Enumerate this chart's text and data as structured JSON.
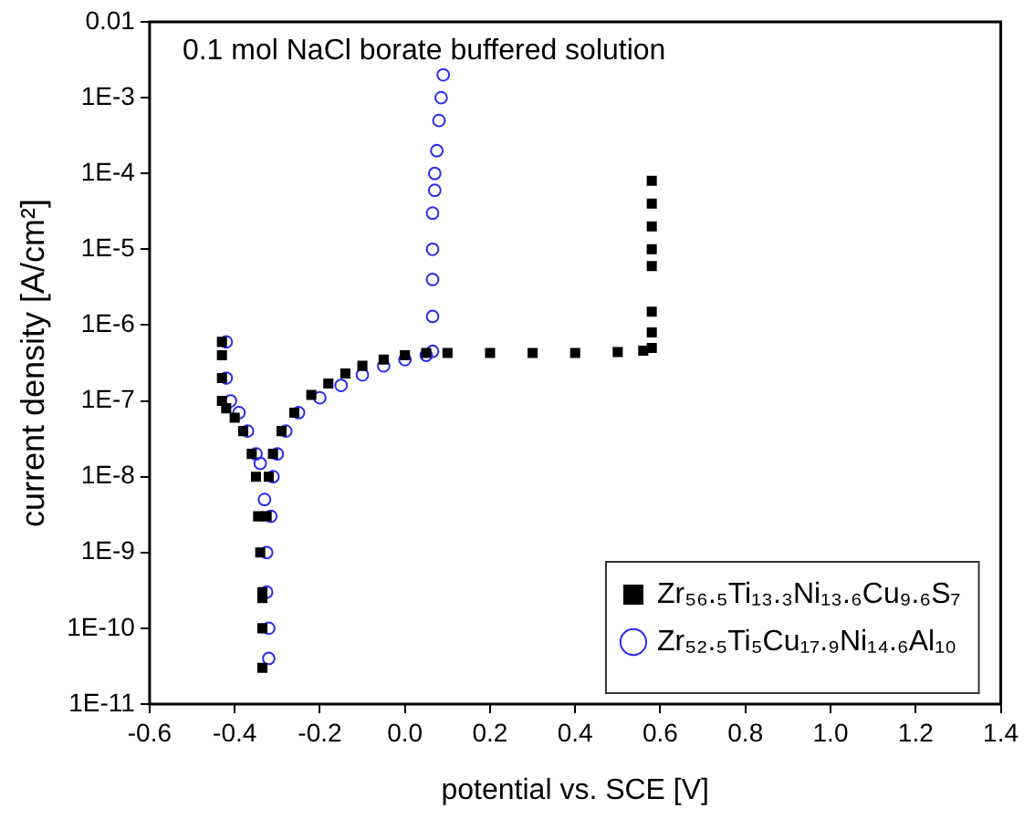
{
  "chart_data": {
    "type": "scatter",
    "xlabel": "potential vs. SCE [V]",
    "ylabel": "current density [A/cm²]",
    "log": "y",
    "annotations": [
      "0.1 mol NaCl borate buffered solution"
    ],
    "xlim": [
      -0.6,
      1.4
    ],
    "ylim": [
      1e-11,
      0.01
    ],
    "xticks": [
      {
        "value": -0.6,
        "label": "-0.6"
      },
      {
        "value": -0.4,
        "label": "-0.4"
      },
      {
        "value": -0.2,
        "label": "-0.2"
      },
      {
        "value": 0,
        "label": "0.0"
      },
      {
        "value": 0.2,
        "label": "0.2"
      },
      {
        "value": 0.4,
        "label": "0.4"
      },
      {
        "value": 0.6,
        "label": "0.6"
      },
      {
        "value": 0.8,
        "label": "0.8"
      },
      {
        "value": 1,
        "label": "1.0"
      },
      {
        "value": 1.2,
        "label": "1.2"
      },
      {
        "value": 1.4,
        "label": "1.4"
      }
    ],
    "yticks": [
      {
        "value": 1e-11,
        "label": "1E-11"
      },
      {
        "value": 1e-10,
        "label": "1E-10"
      },
      {
        "value": 1e-09,
        "label": "1E-9"
      },
      {
        "value": 1e-08,
        "label": "1E-8"
      },
      {
        "value": 1e-07,
        "label": "1E-7"
      },
      {
        "value": 1e-06,
        "label": "1E-6"
      },
      {
        "value": 1e-05,
        "label": "1E-5"
      },
      {
        "value": 0.0001,
        "label": "1E-4"
      },
      {
        "value": 0.001,
        "label": "1E-3"
      },
      {
        "value": 0.01,
        "label": "0.01"
      }
    ],
    "legend": "bottom right",
    "series": [
      {
        "name": "Zr₅₆.₅Ti₁₃.₃Ni₁₃.₆Cu₉.₆S₇",
        "color": "#000000",
        "marker": "square",
        "x": [
          -0.43,
          -0.43,
          -0.43,
          -0.43,
          -0.42,
          -0.4,
          -0.38,
          -0.36,
          -0.35,
          -0.345,
          -0.34,
          -0.335,
          -0.335,
          -0.335,
          -0.335,
          -0.325,
          -0.32,
          -0.31,
          -0.29,
          -0.26,
          -0.22,
          -0.18,
          -0.14,
          -0.1,
          -0.05,
          0,
          0.05,
          0.1,
          0.2,
          0.3,
          0.4,
          0.5,
          0.56,
          0.58,
          0.58,
          0.58,
          0.58,
          0.58,
          0.58,
          0.58,
          0.58
        ],
        "values": [
          6e-07,
          4e-07,
          2e-07,
          1e-07,
          8e-08,
          6e-08,
          4e-08,
          2e-08,
          1e-08,
          3e-09,
          1e-09,
          3e-10,
          2.5e-10,
          1e-10,
          3e-11,
          3e-09,
          1e-08,
          2e-08,
          4e-08,
          7e-08,
          1.2e-07,
          1.7e-07,
          2.3e-07,
          2.9e-07,
          3.5e-07,
          4e-07,
          4.3e-07,
          4.3e-07,
          4.3e-07,
          4.3e-07,
          4.3e-07,
          4.4e-07,
          4.6e-07,
          5e-07,
          8e-07,
          1.5e-06,
          6e-06,
          1e-05,
          2e-05,
          4e-05,
          8e-05
        ]
      },
      {
        "name": "Zr₅₂.₅Ti₅Cu₁₇.₉Ni₁₄.₆Al₁₀",
        "color": "#2b2bf0",
        "marker": "circle",
        "x": [
          -0.42,
          -0.42,
          -0.41,
          -0.39,
          -0.37,
          -0.35,
          -0.34,
          -0.33,
          -0.325,
          -0.325,
          -0.32,
          -0.32,
          -0.315,
          -0.31,
          -0.3,
          -0.28,
          -0.25,
          -0.2,
          -0.15,
          -0.1,
          -0.05,
          0,
          0.05,
          0.065,
          0.065,
          0.065,
          0.065,
          0.065,
          0.07,
          0.07,
          0.075,
          0.08,
          0.085,
          0.09
        ],
        "values": [
          6e-07,
          2e-07,
          1e-07,
          7e-08,
          4e-08,
          2e-08,
          1.5e-08,
          5e-09,
          1e-09,
          3e-10,
          1e-10,
          4e-11,
          3e-09,
          1e-08,
          2e-08,
          4e-08,
          7e-08,
          1.1e-07,
          1.6e-07,
          2.2e-07,
          2.9e-07,
          3.5e-07,
          4e-07,
          4.5e-07,
          1.3e-06,
          4e-06,
          1e-05,
          3e-05,
          6e-05,
          0.0001,
          0.0002,
          0.0005,
          0.001,
          0.002
        ]
      }
    ]
  }
}
